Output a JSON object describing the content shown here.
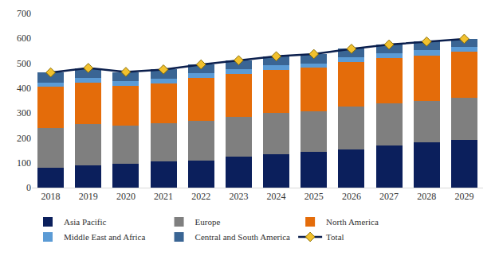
{
  "chart_data": {
    "type": "bar",
    "stacked": true,
    "grid": false,
    "legend": "bottom",
    "categories": [
      "2018",
      "2019",
      "2020",
      "2021",
      "2022",
      "2023",
      "2024",
      "2025",
      "2026",
      "2027",
      "2028",
      "2029"
    ],
    "series": [
      {
        "name": "Asia Pacific",
        "color": "#0b1f5c",
        "values": [
          80,
          90,
          95,
          105,
          110,
          125,
          135,
          145,
          155,
          168,
          182,
          192
        ]
      },
      {
        "name": "Europe",
        "color": "#7f7f7f",
        "values": [
          160,
          165,
          155,
          155,
          160,
          158,
          165,
          162,
          170,
          170,
          165,
          170
        ]
      },
      {
        "name": "North America",
        "color": "#e46c0a",
        "values": [
          165,
          168,
          160,
          160,
          170,
          175,
          172,
          175,
          180,
          182,
          185,
          185
        ]
      },
      {
        "name": "Middle East and Africa",
        "color": "#5b9bd5",
        "values": [
          18,
          18,
          17,
          18,
          19,
          18,
          20,
          18,
          20,
          20,
          20,
          18
        ]
      },
      {
        "name": "Central and South America",
        "color": "#3a6594",
        "values": [
          40,
          40,
          38,
          37,
          36,
          36,
          36,
          37,
          33,
          35,
          35,
          33
        ]
      },
      {
        "name": "Total",
        "type": "line",
        "color": "#0b1f4d",
        "marker": "diamond",
        "values": [
          463,
          481,
          465,
          475,
          495,
          512,
          528,
          537,
          558,
          575,
          587,
          598
        ]
      }
    ],
    "ylim": [
      0,
      700
    ],
    "yticks": [
      0,
      100,
      200,
      300,
      400,
      500,
      600,
      700
    ]
  }
}
